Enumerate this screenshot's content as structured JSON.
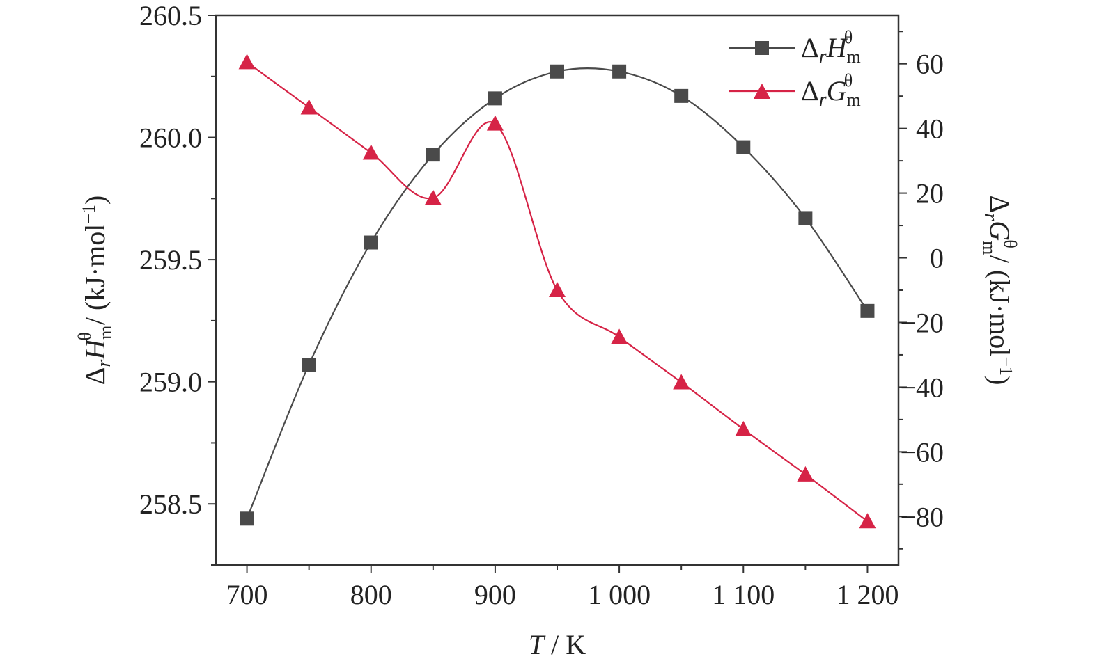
{
  "chart_data": {
    "type": "line",
    "x": [
      700,
      750,
      800,
      850,
      900,
      950,
      1000,
      1050,
      1100,
      1150,
      1200
    ],
    "x_tick_labels": [
      "700",
      "800",
      "900",
      "1 000",
      "1 100",
      "1 200"
    ],
    "xlabel": {
      "var": "T",
      "unit": " / K"
    },
    "xlim": [
      675,
      1225
    ],
    "y_left": {
      "label": {
        "delta": "Δ",
        "sub": "r",
        "sym": "H",
        "m": "m",
        "theta": "θ",
        "unit": " / (kJ·mol",
        "exp": "−1",
        "close": ")"
      },
      "ylim": [
        258.25,
        260.5
      ],
      "ticks": [
        258.5,
        259.0,
        259.5,
        260.0,
        260.5
      ],
      "tick_labels": [
        "258.5",
        "259.0",
        "259.5",
        "260.0",
        "260.5"
      ]
    },
    "y_right": {
      "label": {
        "delta": "Δ",
        "sub": "r",
        "sym": "G",
        "m": "m",
        "theta": "θ",
        "unit": " / (kJ·mol",
        "exp": "−1",
        "close": ")"
      },
      "ylim": [
        -95,
        75
      ],
      "ticks": [
        -80,
        -60,
        -40,
        -20,
        0,
        20,
        40,
        60
      ],
      "tick_labels": [
        "−80",
        "−60",
        "−40",
        "−20",
        "0",
        "20",
        "40",
        "60"
      ]
    },
    "series": [
      {
        "key": "H",
        "axis": "left",
        "marker": "square",
        "color": "#4a4a4a",
        "legend": {
          "delta": "Δ",
          "sub": "r",
          "sym": "H",
          "m": "m",
          "theta": "θ"
        },
        "values": [
          258.44,
          259.07,
          259.57,
          259.93,
          260.16,
          260.27,
          260.27,
          260.17,
          259.96,
          259.67,
          259.29
        ]
      },
      {
        "key": "G",
        "axis": "right",
        "marker": "triangle",
        "color": "#d62346",
        "legend": {
          "delta": "Δ",
          "sub": "r",
          "sym": "G",
          "m": "m",
          "theta": "θ"
        },
        "values": [
          60.5,
          46.5,
          32.5,
          18.5,
          41.5,
          -10.0,
          -24.5,
          -38.5,
          -53.0,
          -67.0,
          -81.5
        ]
      }
    ],
    "legend_position": "top-right",
    "grid": false
  }
}
